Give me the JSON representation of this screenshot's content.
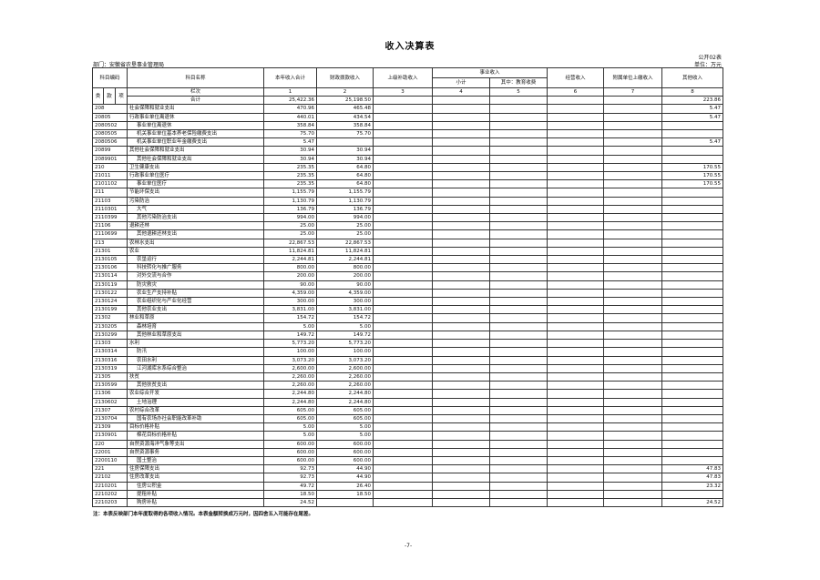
{
  "title": "收入决算表",
  "form_no": "公开02表",
  "unit": "单位：万元",
  "department": "部门：安徽省农垦事业管理局",
  "headers": {
    "code": "科目编码",
    "name": "科目名称",
    "c1": "本年收入合计",
    "c2": "财政拨款收入",
    "c3": "上级补助收入",
    "business": "事业收入",
    "c4": "小计",
    "c5": "其中：教育收费",
    "c6": "经营收入",
    "c7": "附属单位上缴收入",
    "c8": "其他收入",
    "lei": "类",
    "kuan": "款",
    "xiang": "项",
    "lanci": "栏次",
    "col_numbers": [
      "1",
      "2",
      "3",
      "4",
      "5",
      "6",
      "7",
      "8"
    ],
    "total_label": "合计",
    "total_values": [
      "25,422.36",
      "25,198.50",
      "",
      "",
      "",
      "",
      "",
      "223.86"
    ]
  },
  "rows": [
    {
      "code": "208",
      "name": "社会保障和就业支出",
      "v": [
        "470.96",
        "465.48",
        "",
        "",
        "",
        "",
        "",
        "5.47"
      ]
    },
    {
      "code": "20805",
      "name": "行政事业单位离退休",
      "v": [
        "440.01",
        "434.54",
        "",
        "",
        "",
        "",
        "",
        "5.47"
      ]
    },
    {
      "code": "2080502",
      "name": "事业单位离退休",
      "v": [
        "358.84",
        "358.84",
        "",
        "",
        "",
        "",
        "",
        ""
      ]
    },
    {
      "code": "2080505",
      "name": "机关事业单位基本养老保险缴费支出",
      "v": [
        "75.70",
        "75.70",
        "",
        "",
        "",
        "",
        "",
        ""
      ]
    },
    {
      "code": "2080506",
      "name": "机关事业单位职业年金缴费支出",
      "v": [
        "5.47",
        "",
        "",
        "",
        "",
        "",
        "",
        "5.47"
      ]
    },
    {
      "code": "20899",
      "name": "其他社会保障和就业支出",
      "v": [
        "30.94",
        "30.94",
        "",
        "",
        "",
        "",
        "",
        ""
      ]
    },
    {
      "code": "2089901",
      "name": "其他社会保障和就业支出",
      "v": [
        "30.94",
        "30.94",
        "",
        "",
        "",
        "",
        "",
        ""
      ]
    },
    {
      "code": "210",
      "name": "卫生健康支出",
      "v": [
        "235.35",
        "64.80",
        "",
        "",
        "",
        "",
        "",
        "170.55"
      ]
    },
    {
      "code": "21011",
      "name": "行政事业单位医疗",
      "v": [
        "235.35",
        "64.80",
        "",
        "",
        "",
        "",
        "",
        "170.55"
      ]
    },
    {
      "code": "2101102",
      "name": "事业单位医疗",
      "v": [
        "235.35",
        "64.80",
        "",
        "",
        "",
        "",
        "",
        "170.55"
      ]
    },
    {
      "code": "211",
      "name": "节能环保支出",
      "v": [
        "1,155.79",
        "1,155.79",
        "",
        "",
        "",
        "",
        "",
        ""
      ]
    },
    {
      "code": "21103",
      "name": "污染防治",
      "v": [
        "1,130.79",
        "1,130.79",
        "",
        "",
        "",
        "",
        "",
        ""
      ]
    },
    {
      "code": "2110301",
      "name": "大气",
      "v": [
        "136.79",
        "136.79",
        "",
        "",
        "",
        "",
        "",
        ""
      ]
    },
    {
      "code": "2110399",
      "name": "其他污染防治支出",
      "v": [
        "994.00",
        "994.00",
        "",
        "",
        "",
        "",
        "",
        ""
      ]
    },
    {
      "code": "21106",
      "name": "退耕还林",
      "v": [
        "25.00",
        "25.00",
        "",
        "",
        "",
        "",
        "",
        ""
      ]
    },
    {
      "code": "2110699",
      "name": "其他退耕还林支出",
      "v": [
        "25.00",
        "25.00",
        "",
        "",
        "",
        "",
        "",
        ""
      ]
    },
    {
      "code": "213",
      "name": "农林水支出",
      "v": [
        "22,867.53",
        "22,867.53",
        "",
        "",
        "",
        "",
        "",
        ""
      ]
    },
    {
      "code": "21301",
      "name": "农业",
      "v": [
        "11,824.81",
        "11,824.81",
        "",
        "",
        "",
        "",
        "",
        ""
      ]
    },
    {
      "code": "2130105",
      "name": "农垦运行",
      "v": [
        "2,244.81",
        "2,244.81",
        "",
        "",
        "",
        "",
        "",
        ""
      ]
    },
    {
      "code": "2130106",
      "name": "科技转化与推广服务",
      "v": [
        "800.00",
        "800.00",
        "",
        "",
        "",
        "",
        "",
        ""
      ]
    },
    {
      "code": "2130114",
      "name": "对外交流与合作",
      "v": [
        "200.00",
        "200.00",
        "",
        "",
        "",
        "",
        "",
        ""
      ]
    },
    {
      "code": "2130119",
      "name": "防灾救灾",
      "v": [
        "90.00",
        "90.00",
        "",
        "",
        "",
        "",
        "",
        ""
      ]
    },
    {
      "code": "2130122",
      "name": "农业生产支持补贴",
      "v": [
        "4,359.00",
        "4,359.00",
        "",
        "",
        "",
        "",
        "",
        ""
      ]
    },
    {
      "code": "2130124",
      "name": "农业组织化与产业化经营",
      "v": [
        "300.00",
        "300.00",
        "",
        "",
        "",
        "",
        "",
        ""
      ]
    },
    {
      "code": "2130199",
      "name": "其他农业支出",
      "v": [
        "3,831.00",
        "3,831.00",
        "",
        "",
        "",
        "",
        "",
        ""
      ]
    },
    {
      "code": "21302",
      "name": "林业和草原",
      "v": [
        "154.72",
        "154.72",
        "",
        "",
        "",
        "",
        "",
        ""
      ]
    },
    {
      "code": "2130205",
      "name": "森林培育",
      "v": [
        "5.00",
        "5.00",
        "",
        "",
        "",
        "",
        "",
        ""
      ]
    },
    {
      "code": "2130299",
      "name": "其他林业和草原支出",
      "v": [
        "149.72",
        "149.72",
        "",
        "",
        "",
        "",
        "",
        ""
      ]
    },
    {
      "code": "21303",
      "name": "水利",
      "v": [
        "5,773.20",
        "5,773.20",
        "",
        "",
        "",
        "",
        "",
        ""
      ]
    },
    {
      "code": "2130314",
      "name": "防汛",
      "v": [
        "100.00",
        "100.00",
        "",
        "",
        "",
        "",
        "",
        ""
      ]
    },
    {
      "code": "2130316",
      "name": "农田水利",
      "v": [
        "3,073.20",
        "3,073.20",
        "",
        "",
        "",
        "",
        "",
        ""
      ]
    },
    {
      "code": "2130319",
      "name": "江河湖库水系综合整治",
      "v": [
        "2,600.00",
        "2,600.00",
        "",
        "",
        "",
        "",
        "",
        ""
      ]
    },
    {
      "code": "21305",
      "name": "扶贫",
      "v": [
        "2,260.00",
        "2,260.00",
        "",
        "",
        "",
        "",
        "",
        ""
      ]
    },
    {
      "code": "2130599",
      "name": "其他扶贫支出",
      "v": [
        "2,260.00",
        "2,260.00",
        "",
        "",
        "",
        "",
        "",
        ""
      ]
    },
    {
      "code": "21306",
      "name": "农业综合开发",
      "v": [
        "2,244.80",
        "2,244.80",
        "",
        "",
        "",
        "",
        "",
        ""
      ]
    },
    {
      "code": "2130602",
      "name": "土地治理",
      "v": [
        "2,244.80",
        "2,244.80",
        "",
        "",
        "",
        "",
        "",
        ""
      ]
    },
    {
      "code": "21307",
      "name": "农村综合改革",
      "v": [
        "605.00",
        "605.00",
        "",
        "",
        "",
        "",
        "",
        ""
      ]
    },
    {
      "code": "2130704",
      "name": "国有农场办社会职能改革补助",
      "v": [
        "605.00",
        "605.00",
        "",
        "",
        "",
        "",
        "",
        ""
      ]
    },
    {
      "code": "21309",
      "name": "目标价格补贴",
      "v": [
        "5.00",
        "5.00",
        "",
        "",
        "",
        "",
        "",
        ""
      ]
    },
    {
      "code": "2130901",
      "name": "棉花目标价格补贴",
      "v": [
        "5.00",
        "5.00",
        "",
        "",
        "",
        "",
        "",
        ""
      ]
    },
    {
      "code": "220",
      "name": "自然资源海洋气象等支出",
      "v": [
        "600.00",
        "600.00",
        "",
        "",
        "",
        "",
        "",
        ""
      ]
    },
    {
      "code": "22001",
      "name": "自然资源事务",
      "v": [
        "600.00",
        "600.00",
        "",
        "",
        "",
        "",
        "",
        ""
      ]
    },
    {
      "code": "2200110",
      "name": "国土整治",
      "v": [
        "600.00",
        "600.00",
        "",
        "",
        "",
        "",
        "",
        ""
      ]
    },
    {
      "code": "221",
      "name": "住房保障支出",
      "v": [
        "92.73",
        "44.90",
        "",
        "",
        "",
        "",
        "",
        "47.83"
      ]
    },
    {
      "code": "22102",
      "name": "住房改革支出",
      "v": [
        "92.73",
        "44.90",
        "",
        "",
        "",
        "",
        "",
        "47.83"
      ]
    },
    {
      "code": "2210201",
      "name": "住房公积金",
      "v": [
        "49.72",
        "26.40",
        "",
        "",
        "",
        "",
        "",
        "23.32"
      ]
    },
    {
      "code": "2210202",
      "name": "提租补贴",
      "v": [
        "18.50",
        "18.50",
        "",
        "",
        "",
        "",
        "",
        ""
      ]
    },
    {
      "code": "2210203",
      "name": "购房补贴",
      "v": [
        "24.52",
        "",
        "",
        "",
        "",
        "",
        "",
        "24.52"
      ]
    }
  ],
  "note": "注：本表反映部门本年度取得的各项收入情况。本表金额转换成万元时，因四舍五入可能存在尾差。",
  "page_number": "-7-"
}
